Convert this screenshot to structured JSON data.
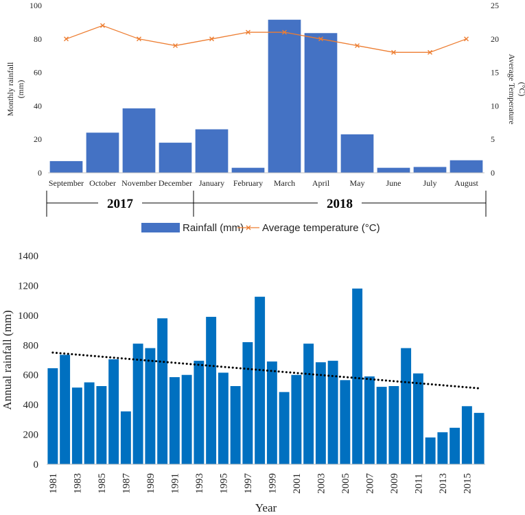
{
  "chart_data": [
    {
      "type": "bar+line",
      "categories": [
        "September",
        "October",
        "November",
        "December",
        "January",
        "February",
        "March",
        "April",
        "May",
        "June",
        "July",
        "August"
      ],
      "series": [
        {
          "name": "Rainfall (mm)",
          "kind": "bar",
          "axis": "left",
          "color": "#4472C4",
          "values": [
            7,
            24,
            38.5,
            18,
            26,
            3,
            91.5,
            83.5,
            23,
            3,
            3.5,
            7.5
          ]
        },
        {
          "name": "Average temperature (°C)",
          "kind": "line",
          "axis": "right",
          "color": "#ED7D31",
          "values": [
            20,
            22,
            20,
            19,
            20,
            21,
            21,
            20,
            19,
            18,
            18,
            20
          ]
        }
      ],
      "ylabel_left": [
        "Monthly rainfall",
        "(mm)"
      ],
      "ylabel_right": [
        "Average Temperature",
        "(°C)"
      ],
      "ylim_left": [
        0,
        100
      ],
      "yticks_left": [
        0,
        20,
        40,
        60,
        80,
        100
      ],
      "ylim_right": [
        0,
        25
      ],
      "yticks_right": [
        0,
        5,
        10,
        15,
        20,
        25
      ],
      "year_groups": [
        {
          "label": "2017",
          "first": 0,
          "last": 3
        },
        {
          "label": "2018",
          "first": 4,
          "last": 11
        }
      ],
      "legend": [
        "Rainfall (mm)",
        "Average temperature (°C)"
      ]
    },
    {
      "type": "bar",
      "categories": [
        1981,
        1982,
        1983,
        1984,
        1985,
        1986,
        1987,
        1988,
        1989,
        1990,
        1991,
        1992,
        1993,
        1994,
        1995,
        1996,
        1997,
        1998,
        1999,
        2000,
        2001,
        2002,
        2003,
        2004,
        2005,
        2006,
        2007,
        2008,
        2009,
        2010,
        2011,
        2012,
        2013,
        2014,
        2015,
        2016
      ],
      "tick_labels": [
        "1981",
        "1983",
        "1985",
        "1987",
        "1989",
        "1991",
        "1993",
        "1995",
        "1997",
        "1999",
        "2001",
        "2003",
        "2005",
        "2007",
        "2009",
        "2011",
        "2013",
        "2015"
      ],
      "values": [
        645,
        735,
        515,
        550,
        525,
        705,
        355,
        810,
        780,
        980,
        585,
        600,
        695,
        990,
        615,
        525,
        820,
        1125,
        690,
        485,
        600,
        810,
        685,
        695,
        565,
        1180,
        590,
        520,
        525,
        780,
        610,
        180,
        215,
        245,
        390,
        345
      ],
      "color": "#0070C0",
      "trendline": {
        "style": "dotted",
        "start": 750,
        "end": 510
      },
      "xlabel": "Year",
      "ylabel": "Annual rainfall (mm)",
      "ylim": [
        0,
        1400
      ],
      "yticks": [
        0,
        200,
        400,
        600,
        800,
        1000,
        1200,
        1400
      ]
    }
  ]
}
